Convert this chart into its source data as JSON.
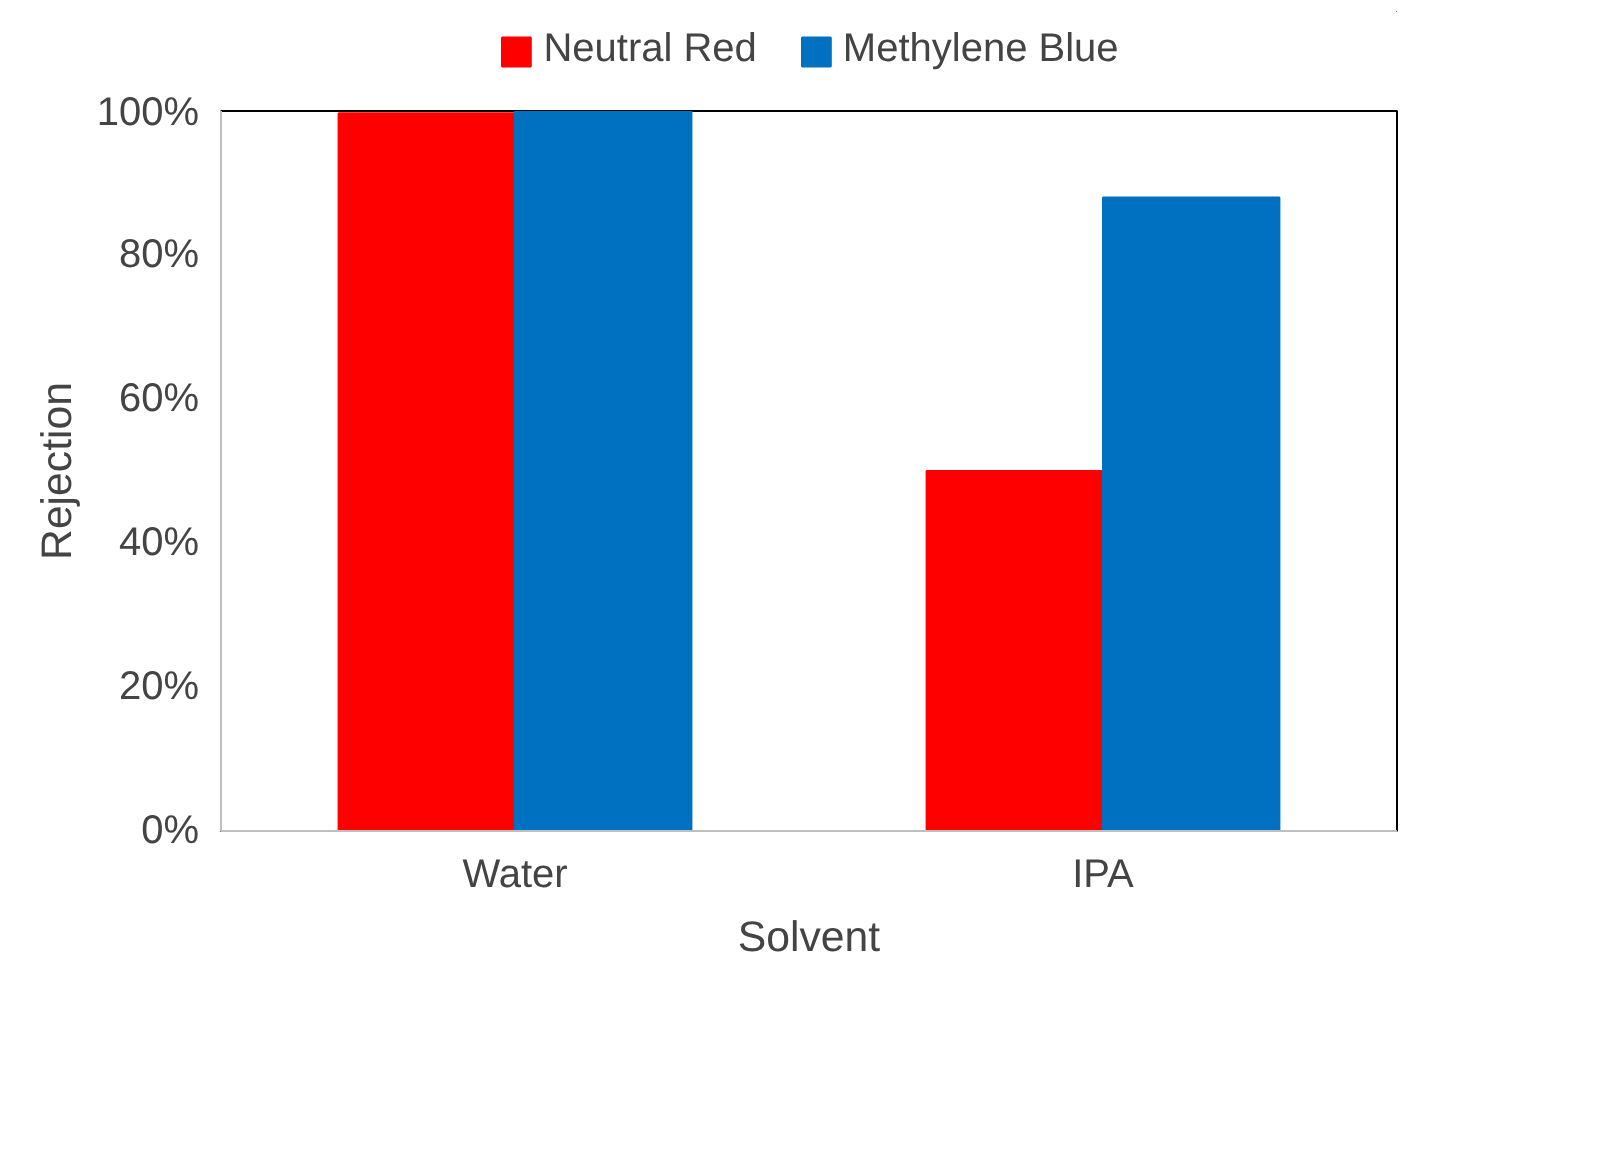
{
  "chart_data": {
    "type": "bar",
    "xlabel": "Solvent",
    "ylabel": "Rejection",
    "categories": [
      "Water",
      "IPA"
    ],
    "series": [
      {
        "name": "Neutral Red",
        "color": "#ff0000",
        "values": [
          0.997,
          0.5
        ]
      },
      {
        "name": "Methylene Blue",
        "color": "#0070c0",
        "values": [
          1.0,
          0.88
        ]
      }
    ],
    "ylim": [
      0,
      1
    ],
    "yticks": [
      {
        "value": 0,
        "label": "0%"
      },
      {
        "value": 0.2,
        "label": "20%"
      },
      {
        "value": 0.4,
        "label": "40%"
      },
      {
        "value": 0.6,
        "label": "60%"
      },
      {
        "value": 0.8,
        "label": "80%"
      },
      {
        "value": 1,
        "label": "100%"
      }
    ],
    "grid": false,
    "legend": "top"
  }
}
